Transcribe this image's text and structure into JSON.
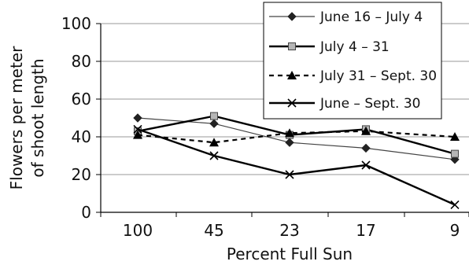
{
  "chart_data": {
    "type": "line",
    "categories": [
      "100",
      "45",
      "23",
      "17",
      "9"
    ],
    "xlabel": "Percent Full Sun",
    "ylabel": [
      "Flowers per meter",
      "of shoot length"
    ],
    "ylim": [
      0,
      100
    ],
    "yticks": [
      0,
      20,
      40,
      60,
      80,
      100
    ],
    "grid": "horizontal",
    "legend_position": "top-right",
    "series": [
      {
        "name": "June 16 – July 4",
        "values": [
          50,
          47,
          37,
          34,
          28
        ],
        "marker": "diamond",
        "line": "solid-thin",
        "color": "#333333"
      },
      {
        "name": "July 4 – 31",
        "values": [
          43,
          51,
          41,
          44,
          31
        ],
        "marker": "square",
        "line": "solid-thick",
        "color": "#000000"
      },
      {
        "name": "July 31 – Sept. 30",
        "values": [
          41,
          37,
          42,
          43,
          40
        ],
        "marker": "triangle",
        "line": "dashed",
        "color": "#000000"
      },
      {
        "name": "June – Sept. 30",
        "values": [
          44,
          30,
          20,
          25,
          4
        ],
        "marker": "x",
        "line": "solid-thick",
        "color": "#000000"
      }
    ]
  }
}
